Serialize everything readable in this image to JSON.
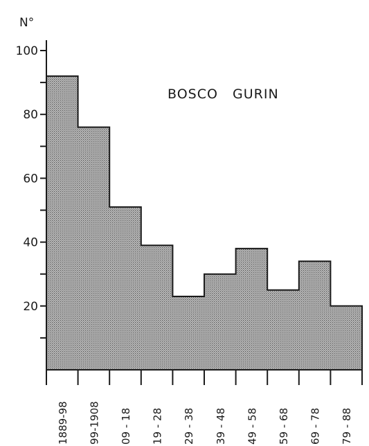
{
  "chart_data": {
    "type": "bar",
    "title": "BOSCO   GURIN",
    "ylabel": "N°",
    "xlabel": "",
    "ylim": [
      0,
      100
    ],
    "yticks": [
      20,
      40,
      60,
      80,
      100
    ],
    "yticks_labeled": [
      20,
      40,
      60,
      80,
      100
    ],
    "yticks_minor": [
      10,
      30,
      50,
      70,
      90
    ],
    "categories": [
      "1889-98",
      "99-1908",
      "09 - 18",
      "19 - 28",
      "29 - 38",
      "39 - 48",
      "49 - 58",
      "59 - 68",
      "69 - 78",
      "79 - 88"
    ],
    "values": [
      92,
      76,
      51,
      39,
      23,
      30,
      38,
      25,
      34,
      20
    ],
    "bar_fill": "#a9a9a9",
    "line_color": "#1a1a1a",
    "grid": false
  }
}
